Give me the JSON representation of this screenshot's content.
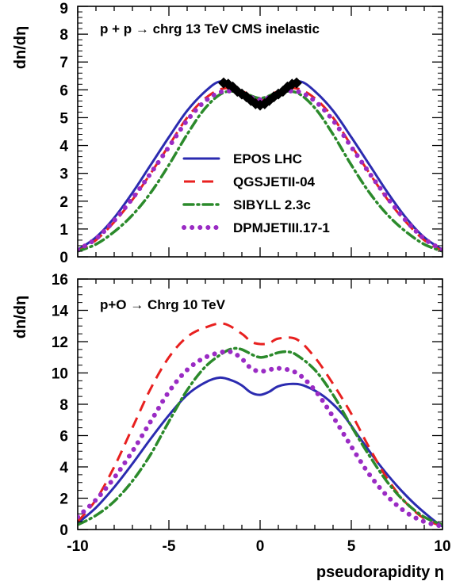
{
  "chart_data": [
    {
      "type": "line",
      "annotation": "p + p → chrg 13 TeV CMS  inelastic",
      "ylabel": "dn/dη",
      "xlabel": "",
      "xlim": [
        -10,
        10
      ],
      "ylim": [
        0,
        9
      ],
      "x_ticks": [
        -10,
        -5,
        0,
        5,
        10
      ],
      "y_ticks": [
        "0",
        "1",
        "2",
        "3",
        "4",
        "5",
        "6",
        "7",
        "8",
        "9"
      ],
      "legend_position": "center-right",
      "series": [
        {
          "name": "EPOS LHC",
          "style": "solid",
          "color": "#2b2bb0",
          "x": [
            -10,
            -9,
            -8,
            -7,
            -6,
            -5,
            -4,
            -3,
            -2.2,
            -1.5,
            -1,
            0,
            1,
            1.5,
            2.2,
            3,
            4,
            5,
            6,
            7,
            8,
            9,
            10
          ],
          "y": [
            0.25,
            0.7,
            1.4,
            2.3,
            3.3,
            4.3,
            5.25,
            5.95,
            6.3,
            6.1,
            5.85,
            5.6,
            5.85,
            6.1,
            6.3,
            5.95,
            5.25,
            4.3,
            3.3,
            2.3,
            1.4,
            0.7,
            0.25
          ]
        },
        {
          "name": "QGSJETII-04",
          "style": "dashed",
          "color": "#e8201f",
          "x": [
            -10,
            -9,
            -8,
            -7,
            -6,
            -5,
            -4,
            -3,
            -2,
            -1,
            0,
            1,
            2,
            3,
            4,
            5,
            6,
            7,
            8,
            9,
            10
          ],
          "y": [
            0.2,
            0.6,
            1.25,
            2.05,
            3.0,
            4.0,
            5.0,
            5.7,
            6.05,
            5.95,
            5.65,
            5.95,
            6.05,
            5.7,
            5.0,
            4.0,
            3.0,
            2.05,
            1.25,
            0.6,
            0.2
          ]
        },
        {
          "name": "SIBYLL 2.3c",
          "style": "dashdot",
          "color": "#2b8a2b",
          "x": [
            -10,
            -9,
            -8,
            -7,
            -6,
            -5,
            -4,
            -3,
            -2,
            -1,
            0,
            1,
            2,
            3,
            4,
            5,
            6,
            7,
            8,
            9,
            10
          ],
          "y": [
            0.2,
            0.45,
            0.9,
            1.5,
            2.3,
            3.3,
            4.4,
            5.35,
            5.9,
            5.9,
            5.7,
            5.9,
            5.9,
            5.35,
            4.4,
            3.3,
            2.3,
            1.5,
            0.9,
            0.45,
            0.2
          ]
        },
        {
          "name": "DPMJETIII.17-1",
          "style": "dotted",
          "color": "#9a2bc4",
          "x": [
            -10,
            -9,
            -8,
            -7,
            -6,
            -5,
            -4,
            -3,
            -2,
            -1,
            0,
            1,
            2,
            3,
            4,
            5,
            6,
            7,
            8,
            9,
            10
          ],
          "y": [
            0.25,
            0.65,
            1.3,
            2.1,
            3.0,
            3.95,
            4.9,
            5.6,
            5.95,
            5.85,
            5.65,
            5.85,
            5.95,
            5.6,
            4.9,
            3.95,
            3.0,
            2.1,
            1.3,
            0.65,
            0.25
          ]
        },
        {
          "name": "",
          "style": "markers",
          "color": "#000000",
          "x": [
            -2.0,
            -1.75,
            -1.5,
            -1.25,
            -1.0,
            -0.75,
            -0.5,
            -0.25,
            0,
            0.25,
            0.5,
            0.75,
            1.0,
            1.25,
            1.5,
            1.75,
            2.0
          ],
          "y": [
            6.25,
            6.2,
            6.1,
            5.95,
            5.85,
            5.75,
            5.62,
            5.5,
            5.45,
            5.5,
            5.62,
            5.75,
            5.85,
            5.95,
            6.1,
            6.2,
            6.25
          ]
        }
      ]
    },
    {
      "type": "line",
      "annotation": "p+O  → Chrg 10 TeV",
      "ylabel": "dn/dη",
      "xlabel": "pseudorapidity η",
      "xlim": [
        -10,
        10
      ],
      "ylim": [
        0,
        16
      ],
      "x_ticks": [
        "-10",
        "-5",
        "0",
        "5",
        "10"
      ],
      "y_ticks": [
        "0",
        "2",
        "4",
        "6",
        "8",
        "10",
        "12",
        "14",
        "16"
      ],
      "series": [
        {
          "name": "EPOS LHC",
          "style": "solid",
          "color": "#2b2bb0",
          "x": [
            -10,
            -9,
            -8,
            -7,
            -6,
            -5,
            -4,
            -3,
            -2.2,
            -1.5,
            -1,
            -0.5,
            0,
            0.5,
            1,
            1.8,
            2.5,
            3.5,
            4.5,
            5.5,
            6.5,
            7.5,
            8.5,
            9.5,
            10
          ],
          "y": [
            0.4,
            1.4,
            2.7,
            4.2,
            5.8,
            7.3,
            8.6,
            9.4,
            9.7,
            9.5,
            9.2,
            8.75,
            8.6,
            8.8,
            9.15,
            9.3,
            9.15,
            8.5,
            7.4,
            5.8,
            4.2,
            2.8,
            1.6,
            0.6,
            0.2
          ]
        },
        {
          "name": "QGSJETII-04",
          "style": "dashed",
          "color": "#e8201f",
          "x": [
            -10,
            -9,
            -8,
            -7,
            -6,
            -5,
            -4,
            -3,
            -2,
            -1,
            -0.5,
            0,
            0.5,
            1,
            2,
            3,
            4,
            5,
            6,
            7,
            8,
            9,
            10
          ],
          "y": [
            0.5,
            1.9,
            4.0,
            6.5,
            9.0,
            11.0,
            12.3,
            12.9,
            13.15,
            12.5,
            12.0,
            11.85,
            11.9,
            12.2,
            12.15,
            11.0,
            9.3,
            7.4,
            5.2,
            3.2,
            1.7,
            0.7,
            0.2
          ]
        },
        {
          "name": "SIBYLL 2.3c",
          "style": "dashdot",
          "color": "#2b8a2b",
          "x": [
            -10,
            -9,
            -8,
            -7,
            -6,
            -5,
            -4,
            -3,
            -2,
            -1.5,
            -1,
            0,
            1,
            1.5,
            2,
            3,
            4,
            5,
            6,
            7,
            8,
            9,
            10
          ],
          "y": [
            0.3,
            0.9,
            1.8,
            3.1,
            4.8,
            6.9,
            8.9,
            10.4,
            11.3,
            11.55,
            11.5,
            11.0,
            11.3,
            11.35,
            11.15,
            10.2,
            8.6,
            6.6,
            4.7,
            3.0,
            1.7,
            0.8,
            0.3
          ]
        },
        {
          "name": "DPMJETIII.17-1",
          "style": "dotted",
          "color": "#9a2bc4",
          "x": [
            -10,
            -9,
            -8,
            -7,
            -6,
            -5,
            -4,
            -3,
            -2,
            -1.5,
            -1,
            -0.5,
            0,
            0.5,
            1,
            2,
            3,
            4,
            5,
            6,
            7,
            8,
            9,
            10
          ],
          "y": [
            0.8,
            1.9,
            3.3,
            5.0,
            6.9,
            8.8,
            10.2,
            11.0,
            11.35,
            11.3,
            10.9,
            10.3,
            10.1,
            10.2,
            10.3,
            10.0,
            8.9,
            7.2,
            5.3,
            3.5,
            2.1,
            1.1,
            0.5,
            0.2
          ]
        }
      ]
    }
  ]
}
